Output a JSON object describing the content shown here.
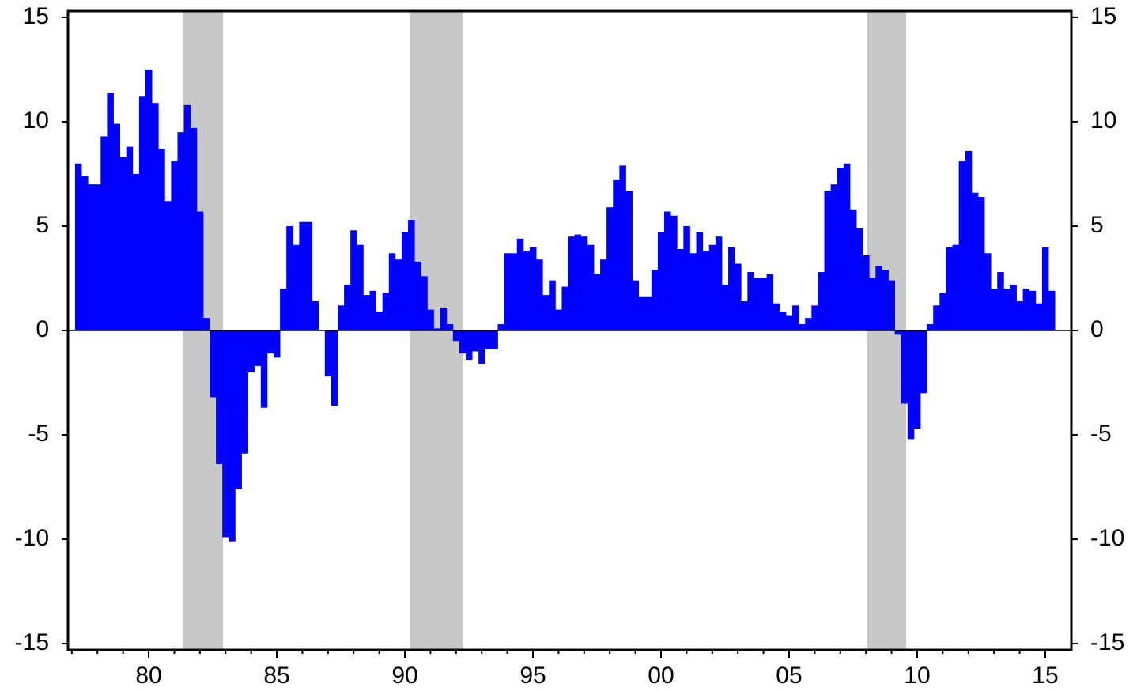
{
  "chart_data": {
    "type": "bar",
    "color": "#0000ff",
    "shade_color": "#c8c8c8",
    "x": [
      1977.25,
      1977.5,
      1977.75,
      1978,
      1978.25,
      1978.5,
      1978.75,
      1979,
      1979.25,
      1979.5,
      1979.75,
      1980,
      1980.25,
      1980.5,
      1980.75,
      1981,
      1981.25,
      1981.5,
      1981.75,
      1982,
      1982.25,
      1982.5,
      1982.75,
      1983,
      1983.25,
      1983.5,
      1983.75,
      1984,
      1984.25,
      1984.5,
      1984.75,
      1985,
      1985.25,
      1985.5,
      1985.75,
      1986,
      1986.25,
      1986.5,
      1986.75,
      1987,
      1987.25,
      1987.5,
      1987.75,
      1988,
      1988.25,
      1988.5,
      1988.75,
      1989,
      1989.25,
      1989.5,
      1989.75,
      1990,
      1990.25,
      1990.5,
      1990.75,
      1991,
      1991.25,
      1991.5,
      1991.75,
      1992,
      1992.25,
      1992.5,
      1992.75,
      1993,
      1993.25,
      1993.5,
      1993.75,
      1994,
      1994.25,
      1994.5,
      1994.75,
      1995,
      1995.25,
      1995.5,
      1995.75,
      1996,
      1996.25,
      1996.5,
      1996.75,
      1997,
      1997.25,
      1997.5,
      1997.75,
      1998,
      1998.25,
      1998.5,
      1998.75,
      1999,
      1999.25,
      1999.5,
      1999.75,
      2000,
      2000.25,
      2000.5,
      2000.75,
      2001,
      2001.25,
      2001.5,
      2001.75,
      2002,
      2002.25,
      2002.5,
      2002.75,
      2003,
      2003.25,
      2003.5,
      2003.75,
      2004,
      2004.25,
      2004.5,
      2004.75,
      2005,
      2005.25,
      2005.5,
      2005.75,
      2006,
      2006.25,
      2006.5,
      2006.75,
      2007,
      2007.25,
      2007.5,
      2007.75,
      2008,
      2008.25,
      2008.5,
      2008.75,
      2009,
      2009.25,
      2009.5,
      2009.75,
      2010,
      2010.25,
      2010.5,
      2010.75,
      2011,
      2011.25,
      2011.5,
      2011.75,
      2012,
      2012.25,
      2012.5,
      2012.75,
      2013,
      2013.25,
      2013.5,
      2013.75,
      2014,
      2014.25,
      2014.5,
      2014.75,
      2015,
      2015.25
    ],
    "values": [
      8.0,
      7.4,
      7.0,
      7.0,
      9.3,
      11.4,
      9.9,
      8.3,
      8.8,
      7.5,
      11.2,
      12.5,
      10.9,
      8.7,
      6.2,
      8.1,
      9.5,
      10.8,
      9.7,
      5.7,
      0.6,
      -3.2,
      -6.4,
      -9.9,
      -10.1,
      -7.6,
      -5.9,
      -2.0,
      -1.7,
      -3.7,
      -1.1,
      -1.3,
      2.0,
      5.0,
      4.1,
      5.2,
      5.2,
      1.4,
      0.0,
      -2.2,
      -3.6,
      1.2,
      2.2,
      4.8,
      4.1,
      1.7,
      1.9,
      0.9,
      1.8,
      3.7,
      3.4,
      4.7,
      5.3,
      3.3,
      2.6,
      1.0,
      0.1,
      1.1,
      0.3,
      -0.5,
      -1.1,
      -1.4,
      -1.0,
      -1.6,
      -0.9,
      -0.9,
      0.3,
      3.7,
      3.7,
      4.4,
      3.8,
      4.0,
      3.4,
      1.7,
      2.4,
      1.0,
      2.1,
      4.5,
      4.6,
      4.5,
      4.1,
      2.7,
      3.4,
      5.9,
      7.2,
      7.9,
      6.7,
      2.4,
      1.6,
      1.6,
      2.9,
      4.7,
      5.7,
      5.5,
      3.9,
      5.0,
      3.7,
      4.7,
      3.8,
      4.1,
      4.5,
      2.2,
      4.0,
      3.2,
      1.4,
      2.8,
      2.5,
      2.5,
      2.7,
      1.3,
      0.9,
      0.7,
      1.2,
      0.3,
      0.6,
      1.2,
      2.8,
      6.7,
      7.0,
      7.8,
      8.0,
      5.8,
      4.9,
      3.6,
      2.5,
      3.1,
      2.9,
      2.4,
      -0.2,
      -3.5,
      -5.2,
      -4.7,
      -3.0,
      0.3,
      1.2,
      1.8,
      4.0,
      4.1,
      8.1,
      8.6,
      6.6,
      6.4,
      3.7,
      2.0,
      2.8,
      2.0,
      2.2,
      1.4,
      2.0,
      1.9,
      1.3,
      4.0,
      1.9
    ],
    "shaded_periods": [
      [
        1981.33,
        1982.9
      ],
      [
        1990.2,
        1992.28
      ],
      [
        2008.05,
        2009.57
      ]
    ],
    "xlim": [
      1976.85,
      2016.02
    ],
    "xticks": [
      {
        "value": 1980,
        "label": "80"
      },
      {
        "value": 1985,
        "label": "85"
      },
      {
        "value": 1990,
        "label": "90"
      },
      {
        "value": 1995,
        "label": "95"
      },
      {
        "value": 2000,
        "label": "00"
      },
      {
        "value": 2005,
        "label": "05"
      },
      {
        "value": 2010,
        "label": "10"
      },
      {
        "value": 2015,
        "label": "15"
      }
    ],
    "xticks_minor": [
      1977,
      1978,
      1979,
      1981,
      1982,
      1983,
      1984,
      1986,
      1987,
      1988,
      1989,
      1991,
      1992,
      1993,
      1994,
      1996,
      1997,
      1998,
      1999,
      2001,
      2002,
      2003,
      2004,
      2006,
      2007,
      2008,
      2009,
      2011,
      2012,
      2013,
      2014
    ],
    "ylim": [
      -15.3,
      15.3
    ],
    "yticks": [
      15,
      10,
      5,
      0,
      -5,
      -10,
      -15
    ],
    "y2lim": [
      -15.3,
      15.3
    ],
    "y2ticks": [
      15,
      10,
      5,
      0,
      -5,
      -10,
      -15
    ]
  }
}
